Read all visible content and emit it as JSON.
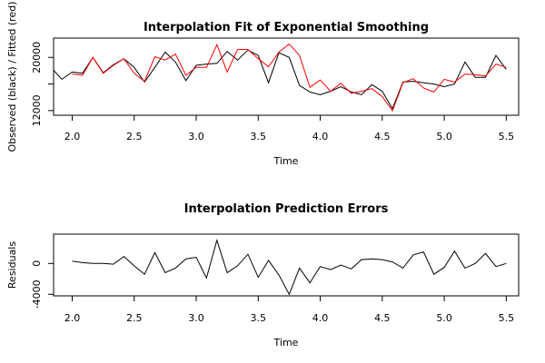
{
  "chart_data": [
    {
      "type": "line",
      "title": "Interpolation Fit of Exponential Smoothing",
      "xlabel": "Time",
      "ylabel": "Observed (black) / Fitted (red)",
      "xlim": [
        1.85,
        5.6
      ],
      "ylim": [
        11300,
        22900
      ],
      "x_ticks": [
        2.0,
        2.5,
        3.0,
        3.5,
        4.0,
        4.5,
        5.0,
        5.5
      ],
      "x_tick_labels": [
        "2.0",
        "2.5",
        "3.0",
        "3.5",
        "4.0",
        "4.5",
        "5.0",
        "5.5"
      ],
      "y_ticks": [
        12000,
        16000,
        20000
      ],
      "y_tick_labels": [
        "12000",
        "",
        "20000"
      ],
      "grid": false,
      "series": [
        {
          "color": "#000000",
          "x": [
            1.833,
            1.917,
            2.0,
            2.083,
            2.167,
            2.25,
            2.333,
            2.417,
            2.5,
            2.583,
            2.667,
            2.75,
            2.833,
            2.917,
            3.0,
            3.083,
            3.167,
            3.25,
            3.333,
            3.417,
            3.5,
            3.583,
            3.667,
            3.75,
            3.833,
            3.917,
            4.0,
            4.083,
            4.167,
            4.25,
            4.333,
            4.417,
            4.5,
            4.583,
            4.667,
            4.75,
            4.833,
            4.917,
            5.0,
            5.083,
            5.167,
            5.25,
            5.333,
            5.417,
            5.5
          ],
          "values": [
            18400,
            16700,
            17800,
            17600,
            20000,
            17700,
            18900,
            19800,
            18500,
            16300,
            18500,
            20800,
            19300,
            16500,
            18800,
            19000,
            19100,
            20900,
            19600,
            21100,
            20300,
            16200,
            20700,
            20000,
            15800,
            14800,
            14400,
            14900,
            15600,
            14800,
            14400,
            15900,
            14900,
            12300,
            16300,
            16400,
            16200,
            16000,
            15600,
            16000,
            19300,
            17000,
            17000,
            20300,
            18200
          ]
        },
        {
          "color": "#ff0000",
          "x": [
            2.0,
            2.083,
            2.167,
            2.25,
            2.333,
            2.417,
            2.5,
            2.583,
            2.667,
            2.75,
            2.833,
            2.917,
            3.0,
            3.083,
            3.167,
            3.25,
            3.333,
            3.417,
            3.5,
            3.583,
            3.667,
            3.75,
            3.833,
            3.917,
            4.0,
            4.083,
            4.167,
            4.25,
            4.333,
            4.417,
            4.5,
            4.583,
            4.667,
            4.75,
            4.833,
            4.917,
            5.0,
            5.083,
            5.167,
            5.25,
            5.333,
            5.417,
            5.5
          ],
          "values": [
            17500,
            17300,
            20000,
            17600,
            18800,
            19800,
            17600,
            16400,
            20100,
            19600,
            20500,
            17300,
            18500,
            18500,
            21900,
            17800,
            21200,
            21200,
            19800,
            18600,
            20800,
            22000,
            20300,
            15500,
            16600,
            14900,
            16100,
            14600,
            14900,
            15300,
            14100,
            12000,
            16200,
            16800,
            15400,
            14800,
            16700,
            16300,
            17500,
            17400,
            17200,
            19000,
            18500
          ]
        }
      ]
    },
    {
      "type": "line",
      "title": "Interpolation Prediction Errors",
      "xlabel": "Time",
      "ylabel": "Residuals",
      "xlim": [
        1.85,
        5.6
      ],
      "ylim": [
        -4200,
        3800
      ],
      "x_ticks": [
        2.0,
        2.5,
        3.0,
        3.5,
        4.0,
        4.5,
        5.0,
        5.5
      ],
      "x_tick_labels": [
        "2.0",
        "2.5",
        "3.0",
        "3.5",
        "4.0",
        "4.5",
        "5.0",
        "5.5"
      ],
      "y_ticks": [
        -4000,
        0
      ],
      "y_tick_labels": [
        "-4000",
        "0"
      ],
      "grid": false,
      "series": [
        {
          "color": "#000000",
          "x": [
            2.0,
            2.083,
            2.167,
            2.25,
            2.333,
            2.417,
            2.5,
            2.583,
            2.667,
            2.75,
            2.833,
            2.917,
            3.0,
            3.083,
            3.167,
            3.25,
            3.333,
            3.417,
            3.5,
            3.583,
            3.667,
            3.75,
            3.833,
            3.917,
            4.0,
            4.083,
            4.167,
            4.25,
            4.333,
            4.417,
            4.5,
            4.583,
            4.667,
            4.75,
            4.833,
            4.917,
            5.0,
            5.083,
            5.167,
            5.25,
            5.333,
            5.417,
            5.5
          ],
          "values": [
            300,
            100,
            0,
            0,
            -100,
            900,
            -300,
            -1400,
            1400,
            -1200,
            -600,
            600,
            800,
            -1900,
            3000,
            -1200,
            -300,
            1200,
            -1800,
            400,
            -1500,
            -4000,
            -600,
            -2500,
            -400,
            -800,
            -200,
            -700,
            500,
            600,
            500,
            200,
            -600,
            1100,
            1500,
            -1400,
            -500,
            1600,
            -600,
            0,
            1300,
            -400,
            0
          ]
        }
      ]
    }
  ]
}
